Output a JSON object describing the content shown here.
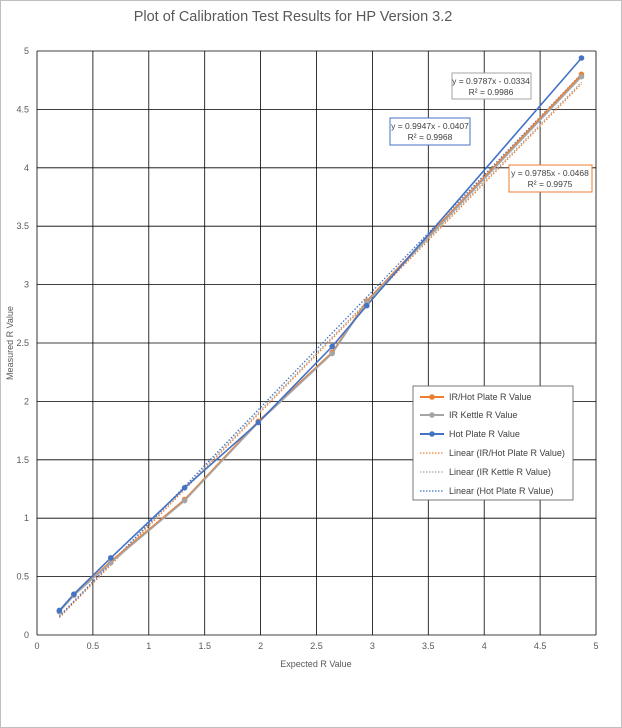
{
  "chart_data": {
    "type": "scatter",
    "title": "Plot of Calibration Test Results for HP Version 3.2",
    "xlabel": "Expected  R Value",
    "ylabel": "Measured R Value",
    "xlim": [
      0,
      5
    ],
    "ylim": [
      0,
      5
    ],
    "x_ticks": [
      "0",
      "0.5",
      "1",
      "1.5",
      "2",
      "2.5",
      "3",
      "3.5",
      "4",
      "4.5",
      "5"
    ],
    "y_ticks": [
      "0",
      "0.5",
      "1",
      "1.5",
      "2",
      "2.5",
      "3",
      "3.5",
      "4",
      "4.5",
      "5"
    ],
    "grid": true,
    "legend_position": "right-middle",
    "series": [
      {
        "name": "IR/Hot Plate R Value",
        "color": "#ed7d31",
        "points": [
          [
            0.2,
            0.2
          ],
          [
            0.33,
            0.34
          ],
          [
            0.66,
            0.63
          ],
          [
            1.32,
            1.16
          ],
          [
            1.98,
            1.83
          ],
          [
            2.64,
            2.42
          ],
          [
            2.95,
            2.86
          ],
          [
            4.87,
            4.8
          ]
        ],
        "trendline": {
          "name": "Linear (IR/Hot Plate R Value)",
          "slope": 0.9785,
          "intercept": -0.0468,
          "equation": "y = 0.9785x - 0.0468",
          "r2": "R² = 0.9975"
        }
      },
      {
        "name": "IR Kettle R Value",
        "color": "#a5a5a5",
        "points": [
          [
            0.2,
            0.2
          ],
          [
            0.33,
            0.34
          ],
          [
            0.66,
            0.62
          ],
          [
            1.32,
            1.15
          ],
          [
            1.98,
            1.82
          ],
          [
            2.64,
            2.41
          ],
          [
            2.95,
            2.85
          ],
          [
            4.87,
            4.78
          ]
        ],
        "trendline": {
          "name": "Linear (IR Kettle R Value)",
          "slope": 0.9787,
          "intercept": -0.0334,
          "equation": "y = 0.9787x - 0.0334",
          "r2": "R² = 0.9986"
        }
      },
      {
        "name": "Hot Plate R Value",
        "color": "#4472c4",
        "points": [
          [
            0.2,
            0.21
          ],
          [
            0.33,
            0.35
          ],
          [
            0.66,
            0.66
          ],
          [
            1.32,
            1.26
          ],
          [
            1.98,
            1.82
          ],
          [
            2.64,
            2.47
          ],
          [
            2.95,
            2.82
          ],
          [
            4.87,
            4.94
          ]
        ],
        "trendline": {
          "name": "Linear (Hot Plate R Value)",
          "slope": 0.9947,
          "intercept": -0.0407,
          "equation": "y = 0.9947x - 0.0407",
          "r2": "R² = 0.9968"
        }
      }
    ]
  }
}
